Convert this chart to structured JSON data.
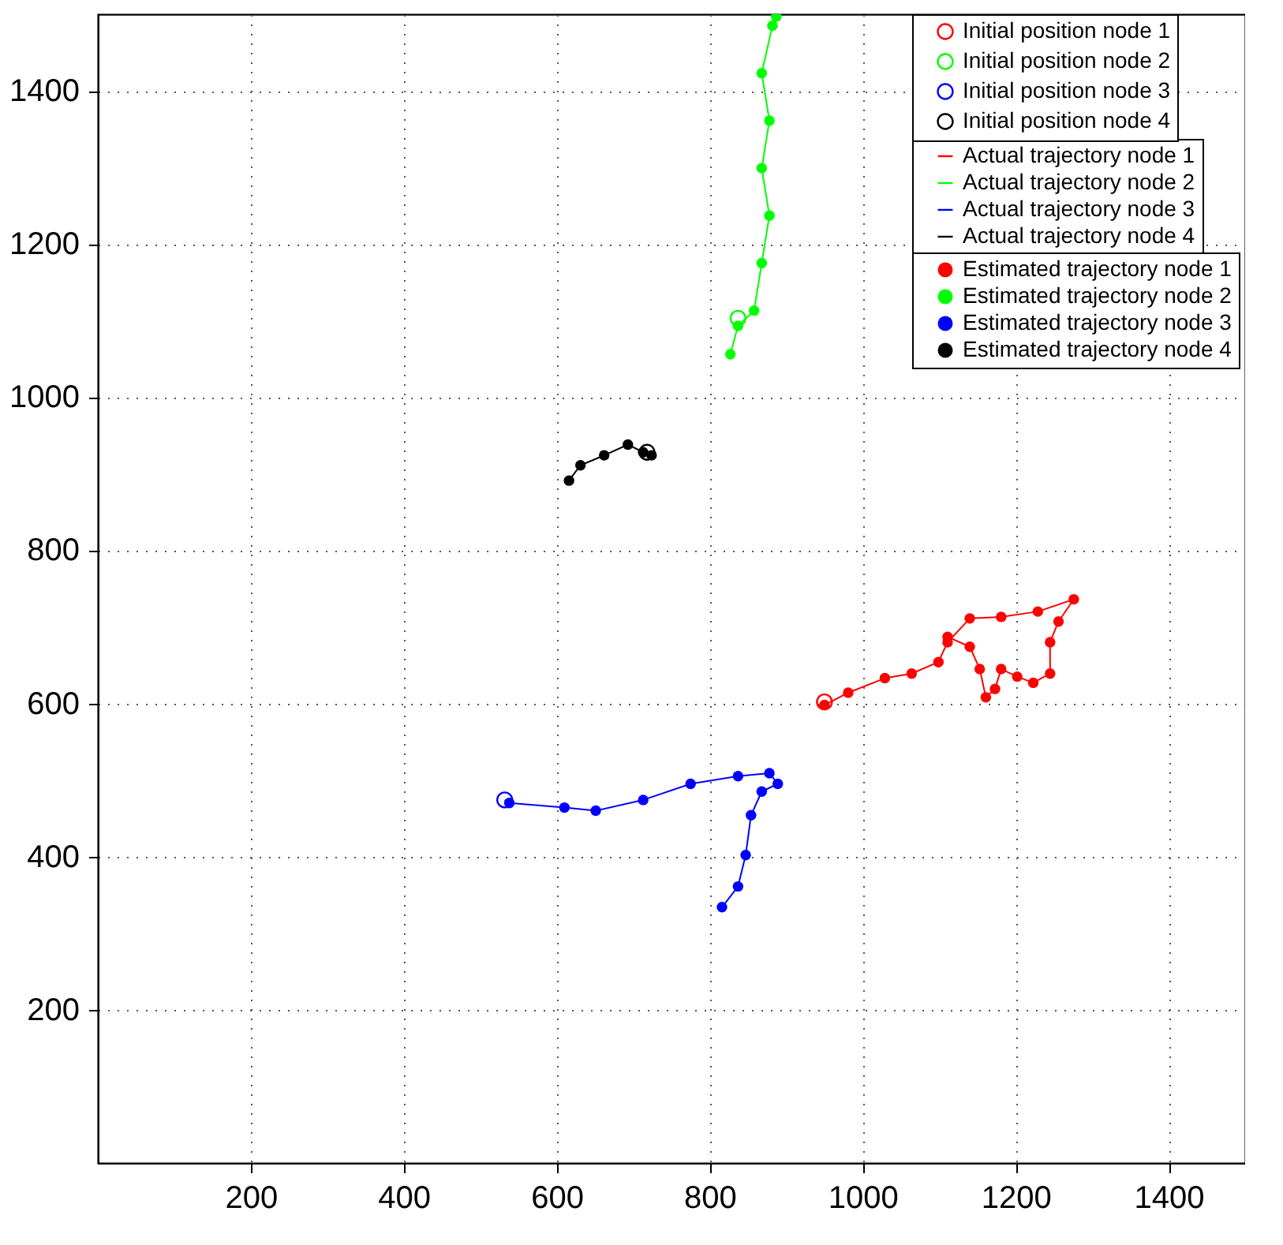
{
  "chart_data": {
    "type": "scatter",
    "xlim": [
      0,
      1500
    ],
    "ylim": [
      0,
      1500
    ],
    "xticks": [
      200,
      400,
      600,
      800,
      1000,
      1200,
      1400
    ],
    "yticks": [
      200,
      400,
      600,
      800,
      1000,
      1200,
      1400
    ],
    "grid": true,
    "legend": "top right",
    "series": [
      {
        "name": "Initial position node 1",
        "marker": "circle",
        "color": "#ff0000",
        "x": [
          950
        ],
        "values": [
          602
        ]
      },
      {
        "name": "Initial position node 2",
        "marker": "circle",
        "color": "#00ff00",
        "x": [
          837
        ],
        "values": [
          1103
        ]
      },
      {
        "name": "Initial position node 3",
        "marker": "circle",
        "color": "#0000ff",
        "x": [
          532
        ],
        "values": [
          474
        ]
      },
      {
        "name": "Initial position node 4",
        "marker": "circle",
        "color": "#000000",
        "x": [
          718
        ],
        "values": [
          928
        ]
      },
      {
        "name": "Actual trajectory node 1",
        "type": "line",
        "color": "#ff0000",
        "x": [
          950,
          981,
          1029,
          1064,
          1099,
          1111,
          1140,
          1181,
          1229,
          1276,
          1256,
          1245,
          1245,
          1223,
          1202,
          1181,
          1173,
          1161,
          1153,
          1140,
          1111
        ],
        "values": [
          598,
          614,
          633,
          639,
          654,
          680,
          711,
          713,
          720,
          736,
          707,
          680,
          639,
          627,
          635,
          645,
          619,
          608,
          645,
          674,
          687
        ]
      },
      {
        "name": "Actual trajectory node 2",
        "type": "line",
        "color": "#00ff00",
        "x": [
          827,
          837,
          858,
          868,
          878,
          868,
          878,
          868,
          882,
          887
        ],
        "values": [
          1056,
          1093,
          1113,
          1175,
          1237,
          1299,
          1361,
          1423,
          1485,
          1497
        ]
      },
      {
        "name": "Actual trajectory node 3",
        "type": "line",
        "color": "#0000ff",
        "x": [
          532,
          538,
          610,
          651,
          713,
          775,
          837,
          878,
          889,
          868,
          854,
          847,
          837,
          816
        ],
        "values": [
          474,
          470,
          464,
          460,
          474,
          495,
          505,
          509,
          495,
          485,
          454,
          402,
          361,
          334
        ]
      },
      {
        "name": "Actual trajectory node 4",
        "type": "line",
        "color": "#000000",
        "x": [
          616,
          631,
          662,
          693,
          713,
          724
        ],
        "values": [
          891,
          911,
          924,
          938,
          928,
          924
        ]
      },
      {
        "name": "Estimated trajectory node 1",
        "marker": "dot",
        "color": "#ff0000",
        "x": [
          950,
          981,
          1029,
          1064,
          1099,
          1111,
          1140,
          1181,
          1229,
          1276,
          1256,
          1245,
          1245,
          1223,
          1202,
          1181,
          1173,
          1161,
          1153,
          1140,
          1111
        ],
        "values": [
          598,
          614,
          633,
          639,
          654,
          680,
          711,
          713,
          720,
          736,
          707,
          680,
          639,
          627,
          635,
          645,
          619,
          608,
          645,
          674,
          687
        ]
      },
      {
        "name": "Estimated trajectory node 2",
        "marker": "dot",
        "color": "#00ff00",
        "x": [
          827,
          837,
          858,
          868,
          878,
          868,
          878,
          868,
          882,
          887
        ],
        "values": [
          1056,
          1093,
          1113,
          1175,
          1237,
          1299,
          1361,
          1423,
          1485,
          1497
        ]
      },
      {
        "name": "Estimated trajectory node 3",
        "marker": "dot",
        "color": "#0000ff",
        "x": [
          538,
          610,
          651,
          713,
          775,
          837,
          878,
          889,
          868,
          854,
          847,
          837,
          816
        ],
        "values": [
          470,
          464,
          460,
          474,
          495,
          505,
          509,
          495,
          485,
          454,
          402,
          361,
          334
        ]
      },
      {
        "name": "Estimated trajectory node 4",
        "marker": "dot",
        "color": "#000000",
        "x": [
          616,
          631,
          662,
          693,
          713,
          724
        ],
        "values": [
          891,
          911,
          924,
          938,
          928,
          924
        ]
      }
    ]
  }
}
